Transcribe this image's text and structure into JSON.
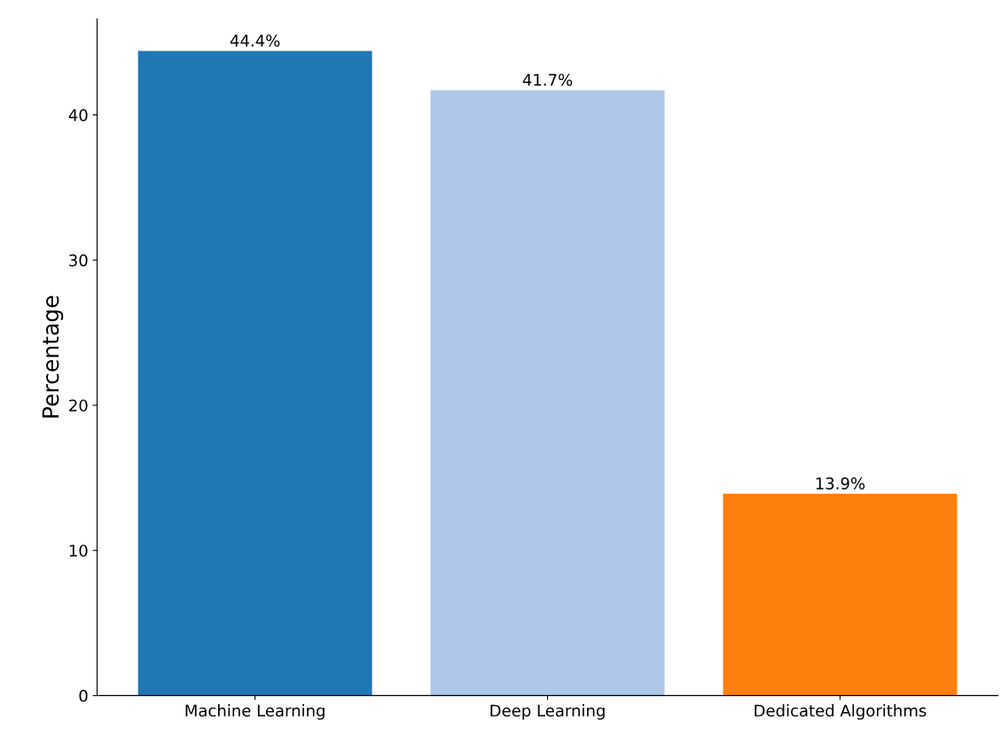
{
  "chart_data": {
    "type": "bar",
    "ylabel": "Percentage",
    "categories": [
      "Machine Learning",
      "Deep Learning",
      "Dedicated Algorithms"
    ],
    "values": [
      44.4,
      41.7,
      13.9
    ],
    "colors": [
      "#1f77b4",
      "#aec7e8",
      "#ff7f0e"
    ],
    "value_labels": [
      "44.4%",
      "41.7%",
      "13.9%"
    ],
    "ylim": [
      0,
      46.62
    ],
    "yticks": [
      0,
      10,
      20,
      30,
      40
    ],
    "grid": false,
    "legend": false
  }
}
